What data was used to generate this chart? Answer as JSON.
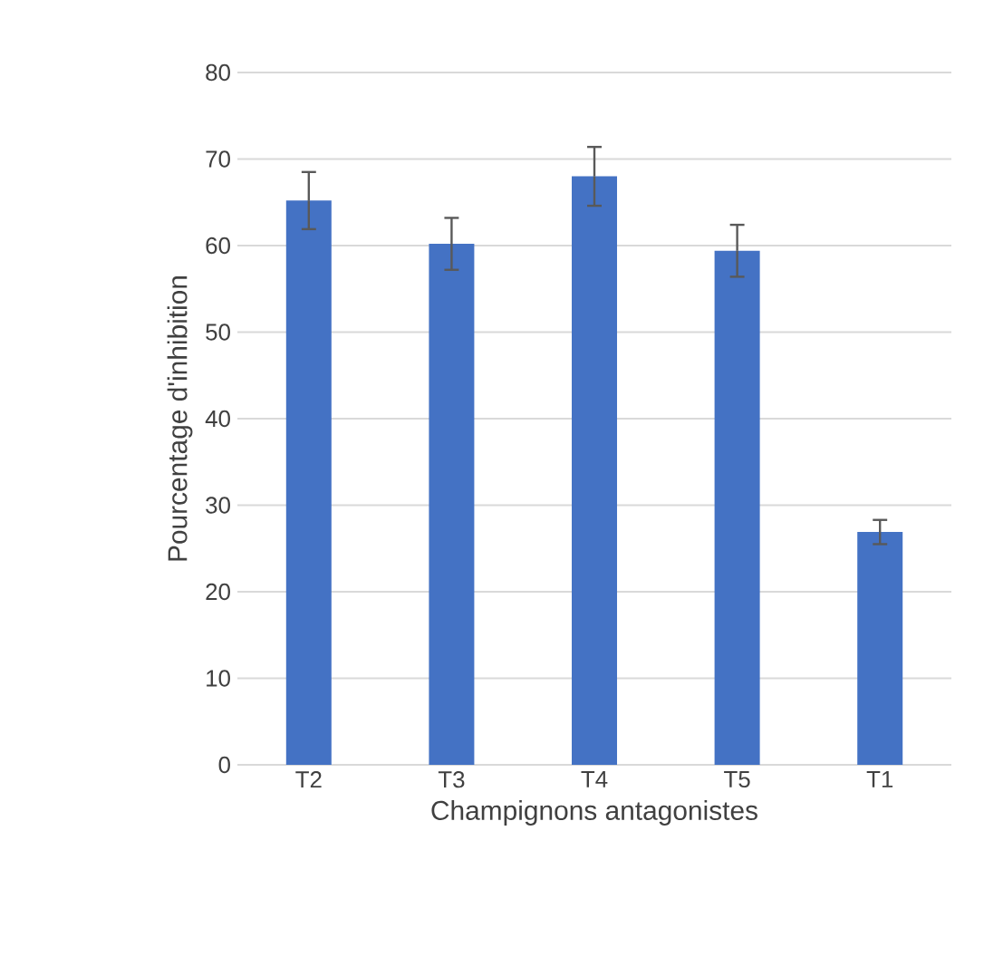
{
  "chart_data": {
    "type": "bar",
    "xlabel": "Champignons antagonistes",
    "ylabel": "Pourcentage d'inhibition",
    "categories": [
      "T2",
      "T3",
      "T4",
      "T5",
      "T1"
    ],
    "values": [
      65.2,
      60.2,
      68.0,
      59.4,
      26.9
    ],
    "errors": [
      3.3,
      3.0,
      3.4,
      3.0,
      1.4
    ],
    "color": "#4472c4",
    "ylim": [
      0,
      80
    ],
    "yticks": [
      0,
      10,
      20,
      30,
      40,
      50,
      60,
      70,
      80
    ],
    "grid": "y"
  }
}
